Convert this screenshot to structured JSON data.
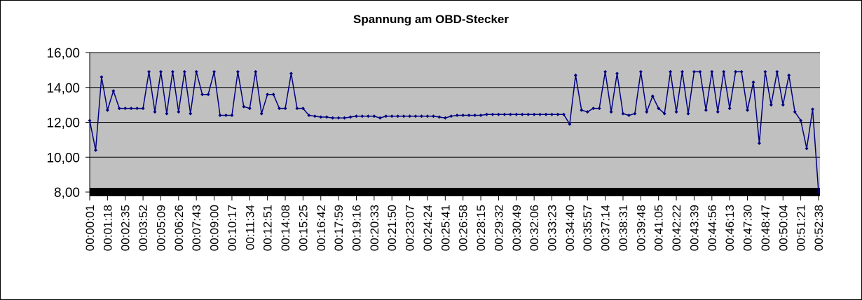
{
  "chart_data": {
    "type": "line",
    "title": "Spannung am OBD-Stecker",
    "categories": [
      "00:00:01",
      null,
      null,
      "00:01:18",
      null,
      null,
      "00:02:35",
      null,
      null,
      "00:03:52",
      null,
      null,
      "00:05:09",
      null,
      null,
      "00:06:26",
      null,
      null,
      "00:07:43",
      null,
      null,
      "00:09:00",
      null,
      null,
      "00:10:17",
      null,
      null,
      "00:11:34",
      null,
      null,
      "00:12:51",
      null,
      null,
      "00:14:08",
      null,
      null,
      "00:15:25",
      null,
      null,
      "00:16:42",
      null,
      null,
      "00:17:59",
      null,
      null,
      "00:19:16",
      null,
      null,
      "00:20:33",
      null,
      null,
      "00:21:50",
      null,
      null,
      "00:23:07",
      null,
      null,
      "00:24:24",
      null,
      null,
      "00:25:41",
      null,
      null,
      "00:26:58",
      null,
      null,
      "00:28:15",
      null,
      null,
      "00:29:32",
      null,
      null,
      "00:30:49",
      null,
      null,
      "00:32:06",
      null,
      null,
      "00:33:23",
      null,
      null,
      "00:34:40",
      null,
      null,
      "00:35:57",
      null,
      null,
      "00:37:14",
      null,
      null,
      "00:38:31",
      null,
      null,
      "00:39:48",
      null,
      null,
      "00:41:05",
      null,
      null,
      "00:42:22",
      null,
      null,
      "00:43:39",
      null,
      null,
      "00:44:56",
      null,
      null,
      "00:46:13",
      null,
      null,
      "00:47:30",
      null,
      null,
      "00:48:47",
      null,
      null,
      "00:50:04",
      null,
      null,
      "00:51:21",
      null,
      null,
      "00:52:38"
    ],
    "values": [
      12.1,
      10.4,
      14.6,
      12.7,
      13.8,
      12.8,
      12.8,
      12.8,
      12.8,
      12.8,
      14.9,
      12.6,
      14.9,
      12.5,
      14.9,
      12.6,
      14.9,
      12.5,
      14.9,
      13.6,
      13.6,
      14.9,
      12.4,
      12.4,
      12.4,
      14.9,
      12.9,
      12.8,
      14.9,
      12.5,
      13.6,
      13.6,
      12.8,
      12.8,
      14.8,
      12.8,
      12.8,
      12.4,
      12.35,
      12.3,
      12.3,
      12.25,
      12.25,
      12.25,
      12.3,
      12.35,
      12.35,
      12.35,
      12.35,
      12.25,
      12.35,
      12.35,
      12.35,
      12.35,
      12.35,
      12.35,
      12.35,
      12.35,
      12.35,
      12.3,
      12.25,
      12.35,
      12.4,
      12.4,
      12.4,
      12.4,
      12.4,
      12.45,
      12.45,
      12.45,
      12.45,
      12.45,
      12.45,
      12.45,
      12.45,
      12.45,
      12.45,
      12.45,
      12.45,
      12.45,
      12.45,
      11.9,
      14.7,
      12.7,
      12.6,
      12.8,
      12.8,
      14.9,
      12.6,
      14.8,
      12.5,
      12.4,
      12.5,
      14.9,
      12.6,
      13.5,
      12.8,
      12.5,
      14.9,
      12.6,
      14.9,
      12.5,
      14.9,
      14.9,
      12.7,
      14.9,
      12.6,
      14.9,
      12.8,
      14.9,
      14.9,
      12.7,
      14.3,
      10.8,
      14.9,
      13.0,
      14.9,
      13.0,
      14.7,
      12.6,
      12.1,
      10.5,
      12.75,
      8.0
    ],
    "color": "#000080",
    "ylim": [
      8,
      16
    ],
    "yticks": [
      {
        "value": 8,
        "label": "8,00"
      },
      {
        "value": 10,
        "label": "10,00"
      },
      {
        "value": 12,
        "label": "12,00"
      },
      {
        "value": 14,
        "label": "14,00"
      },
      {
        "value": 16,
        "label": "16,00"
      }
    ],
    "grid": true
  }
}
